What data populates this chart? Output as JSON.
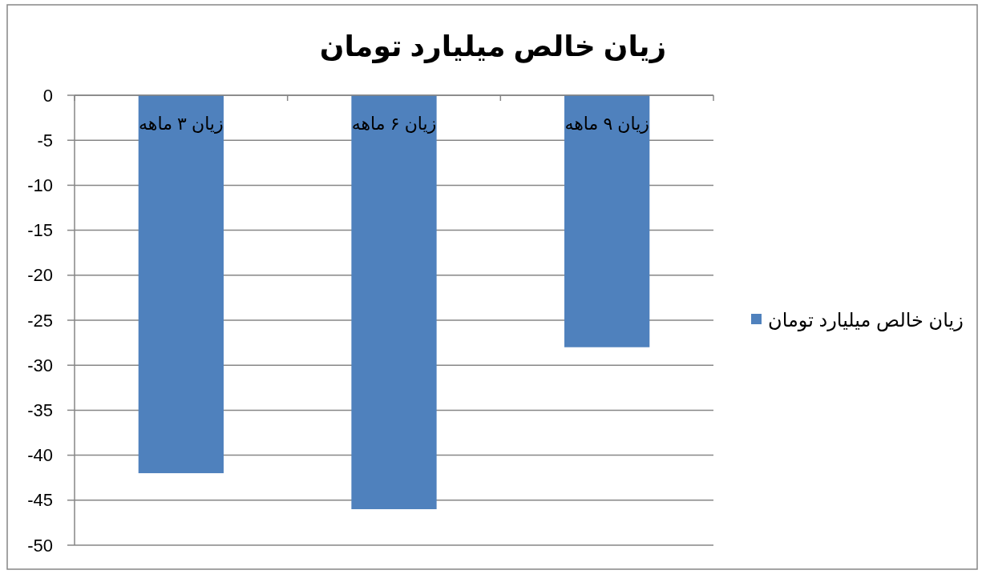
{
  "chart_data": {
    "type": "bar",
    "title": "زیان خالص میلیارد تومان",
    "categories": [
      "زیان ۳ ماهه",
      "زیان ۶ ماهه",
      "زیان ۹ ماهه"
    ],
    "series": [
      {
        "name": "زیان خالص میلیارد تومان",
        "color": "#4f81bd",
        "values": [
          -42,
          -46,
          -28
        ]
      }
    ],
    "ylim": [
      -50,
      0
    ],
    "yticks": [
      -50,
      -45,
      -40,
      -35,
      -30,
      -25,
      -20,
      -15,
      -10,
      -5,
      0
    ],
    "grid": "y",
    "legend": "right"
  }
}
